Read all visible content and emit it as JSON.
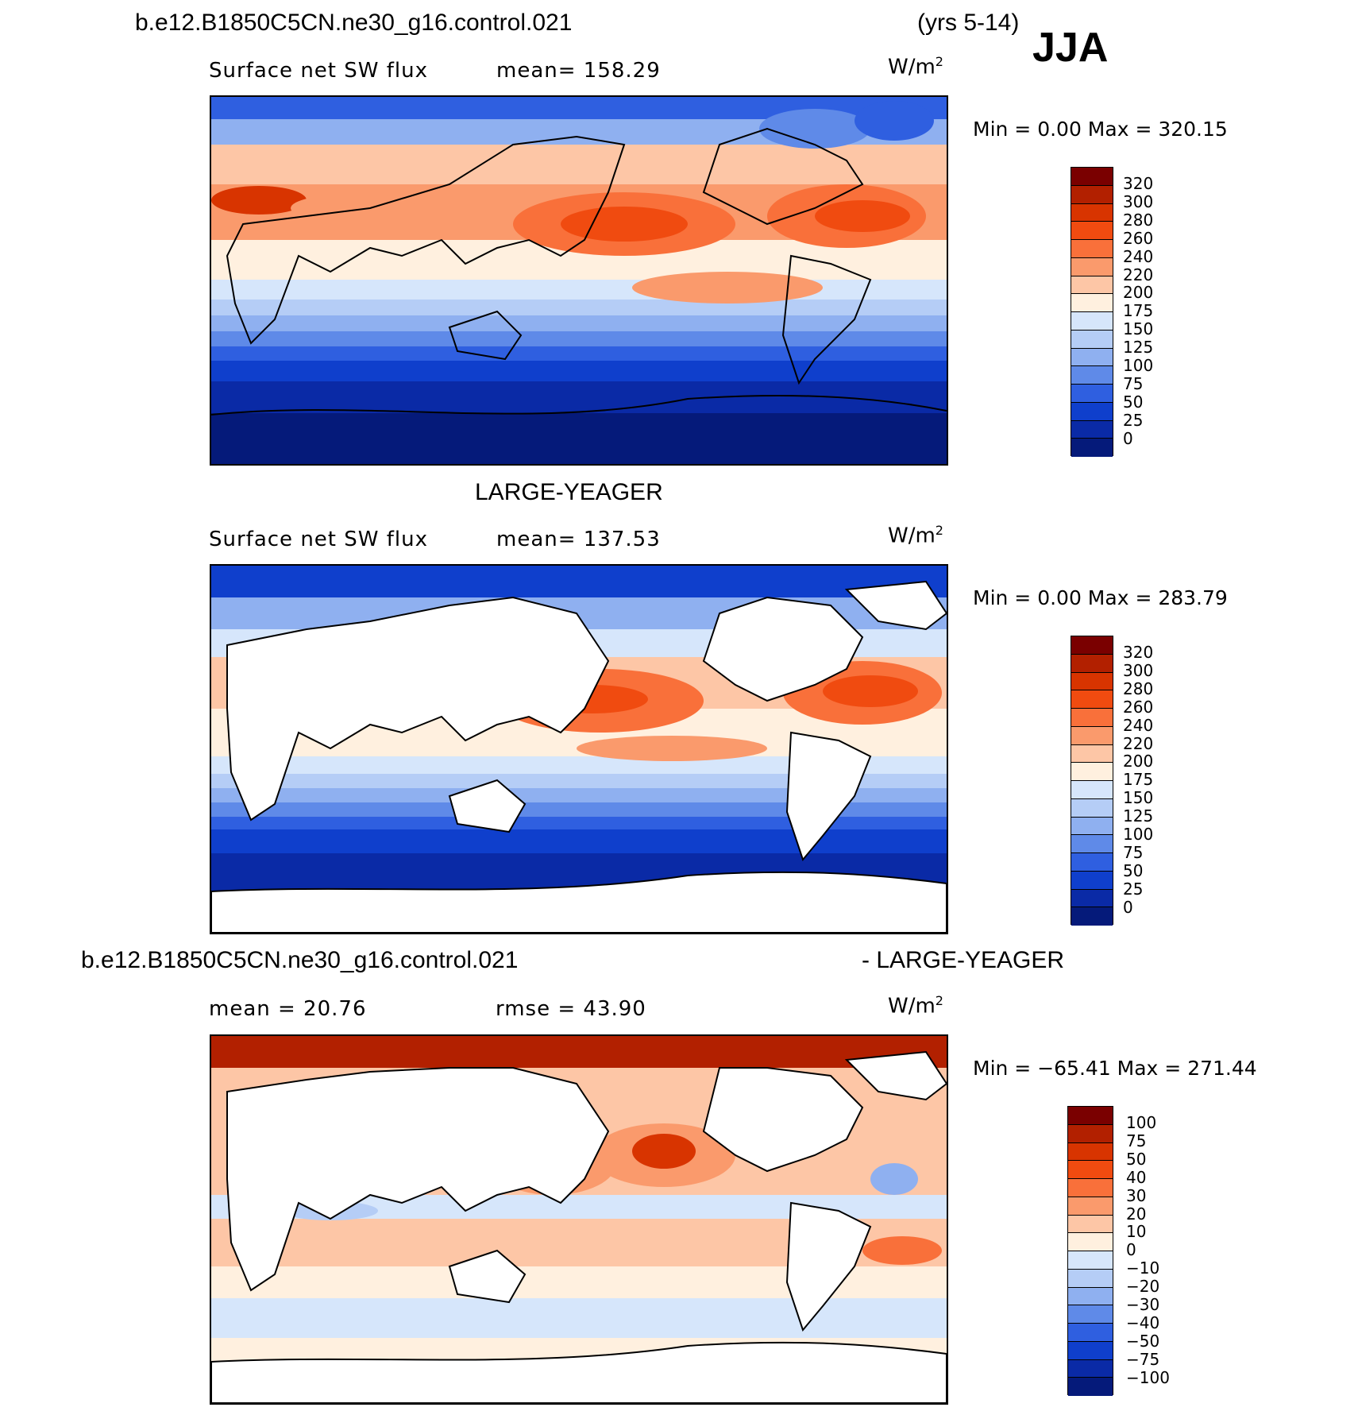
{
  "header": {
    "case": "b.e12.B1850C5CN.ne30_g16.control.021",
    "years": "(yrs 5-14)",
    "season": "JJA"
  },
  "panels": [
    {
      "title": "",
      "label": "Surface net SW flux",
      "stat": "mean= 158.29",
      "units": "W/m",
      "units_sup": "2",
      "minmax": "Min =     0.00  Max  =  320.15",
      "levels": [
        "320",
        "300",
        "280",
        "260",
        "240",
        "220",
        "200",
        "175",
        "150",
        "125",
        "100",
        "75",
        "50",
        "25",
        "0"
      ]
    },
    {
      "title": "LARGE-YEAGER",
      "label": "Surface net SW flux",
      "stat": "mean= 137.53",
      "units": "W/m",
      "units_sup": "2",
      "minmax": "Min =     0.00  Max  =  283.79",
      "levels": [
        "320",
        "300",
        "280",
        "260",
        "240",
        "220",
        "200",
        "175",
        "150",
        "125",
        "100",
        "75",
        "50",
        "25",
        "0"
      ]
    },
    {
      "title_left": "b.e12.B1850C5CN.ne30_g16.control.021",
      "title_right": "- LARGE-YEAGER",
      "stat_mean": "mean =   20.76",
      "stat_rmse": "rmse =   43.90",
      "units": "W/m",
      "units_sup": "2",
      "minmax": "Min = −65.41  Max  =  271.44",
      "levels": [
        "100",
        "75",
        "50",
        "40",
        "30",
        "20",
        "10",
        "0",
        "−10",
        "−20",
        "−30",
        "−40",
        "−50",
        "−75",
        "−100"
      ]
    }
  ],
  "colors": {
    "abs_scale": [
      "#7a0000",
      "#b22000",
      "#d83400",
      "#f04b10",
      "#f9703a",
      "#fa9a6c",
      "#fdc6a6",
      "#fff0df",
      "#d6e6fb",
      "#b5cdf6",
      "#8fb0f0",
      "#5f8ae8",
      "#2f5fe0",
      "#0f3fcc",
      "#0a2aa6",
      "#051a7a"
    ],
    "diff_scale": [
      "#7a0000",
      "#b22000",
      "#d83400",
      "#f04b10",
      "#f9703a",
      "#fa9a6c",
      "#fdc6a6",
      "#fff0df",
      "#d6e6fb",
      "#b5cdf6",
      "#8fb0f0",
      "#5f8ae8",
      "#2f5fe0",
      "#0f3fcc",
      "#0a2aa6",
      "#051a7a"
    ],
    "land_mask": "#ffffff"
  }
}
